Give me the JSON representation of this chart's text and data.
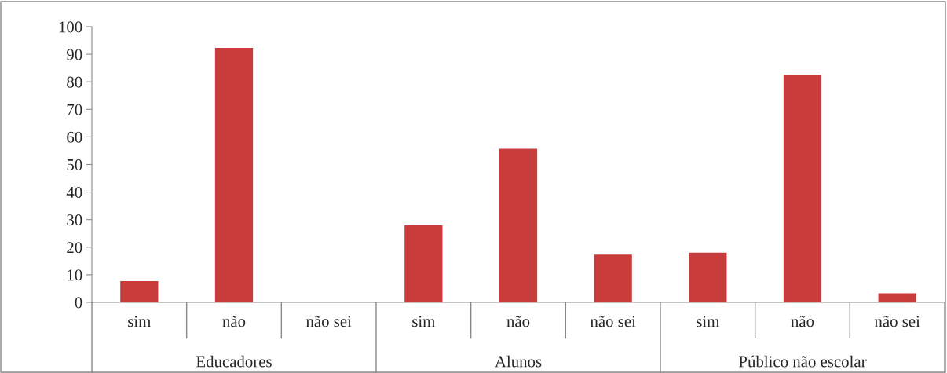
{
  "chart_data": {
    "type": "bar",
    "categories": [
      "sim",
      "não",
      "não sei",
      "sim",
      "não",
      "não sei",
      "sim",
      "não",
      "não sei"
    ],
    "values": [
      7.7,
      92.3,
      0,
      27.9,
      55.7,
      17.3,
      18.0,
      82.5,
      3.3
    ],
    "color": "#c83c3c",
    "ylim": [
      0,
      100
    ],
    "yticks": [
      0,
      10,
      20,
      30,
      40,
      50,
      60,
      70,
      80,
      90,
      100
    ],
    "grid": false,
    "annotations": [
      "Educadores",
      "Alunos",
      "Público não escolar"
    ]
  }
}
